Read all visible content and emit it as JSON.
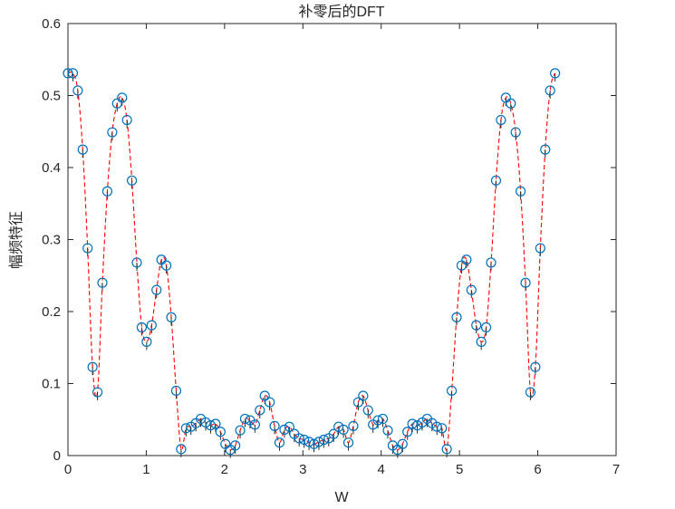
{
  "chart_data": {
    "type": "line",
    "title": "补零后的DFT",
    "xlabel": "W",
    "ylabel": "幅频特征",
    "xlim": [
      0,
      7
    ],
    "ylim": [
      0,
      0.6
    ],
    "xticks": [
      0,
      1,
      2,
      3,
      4,
      5,
      6,
      7
    ],
    "yticks": [
      0,
      0.1,
      0.2,
      0.3,
      0.4,
      0.5,
      0.6
    ],
    "xtick_labels": [
      "0",
      "1",
      "2",
      "3",
      "4",
      "5",
      "6",
      "7"
    ],
    "ytick_labels": [
      "0",
      "0.1",
      "0.2",
      "0.3",
      "0.4",
      "0.5",
      "0.6"
    ],
    "grid": false,
    "box": true,
    "series": [
      {
        "style": "red dashed interpolated line with blue circle markers and stems",
        "marker_color": "#0072BD",
        "line_color": "#FF0000",
        "x": [
          0,
          0.0628,
          0.1257,
          0.1885,
          0.2513,
          0.3142,
          0.377,
          0.4398,
          0.5027,
          0.5655,
          0.6283,
          0.6912,
          0.754,
          0.8168,
          0.8796,
          0.9425,
          1.0053,
          1.0681,
          1.131,
          1.1938,
          1.2566,
          1.3195,
          1.3823,
          1.4451,
          1.508,
          1.5708,
          1.6336,
          1.6965,
          1.7593,
          1.8221,
          1.885,
          1.9478,
          2.0106,
          2.0735,
          2.1363,
          2.1991,
          2.2619,
          2.3248,
          2.3876,
          2.4504,
          2.5133,
          2.5761,
          2.6389,
          2.7018,
          2.7646,
          2.8274,
          2.8903,
          2.9531,
          3.0159,
          3.0788,
          3.1416,
          3.2044,
          3.2673,
          3.3301,
          3.3929,
          3.4558,
          3.5186,
          3.5814,
          3.6442,
          3.7071,
          3.7699,
          3.8327,
          3.8956,
          3.9584,
          4.0212,
          4.0841,
          4.1469,
          4.2097,
          4.2726,
          4.3354,
          4.3982,
          4.4611,
          4.5239,
          4.5867,
          4.6496,
          4.7124,
          4.7752,
          4.8381,
          4.9009,
          4.9637,
          5.0265,
          5.0894,
          5.1522,
          5.215,
          5.2779,
          5.3407,
          5.4035,
          5.4664,
          5.5292,
          5.592,
          5.6549,
          5.7177,
          5.7805,
          5.8434,
          5.9062,
          5.969,
          6.0319,
          6.0947,
          6.1575,
          6.2204
        ],
        "y": [
          0.531,
          0.531,
          0.507,
          0.425,
          0.288,
          0.123,
          0.088,
          0.24,
          0.367,
          0.449,
          0.489,
          0.497,
          0.466,
          0.382,
          0.268,
          0.178,
          0.158,
          0.181,
          0.23,
          0.272,
          0.264,
          0.192,
          0.09,
          0.009,
          0.038,
          0.04,
          0.045,
          0.051,
          0.046,
          0.042,
          0.044,
          0.033,
          0.016,
          0.008,
          0.014,
          0.035,
          0.051,
          0.049,
          0.043,
          0.063,
          0.083,
          0.074,
          0.041,
          0.018,
          0.036,
          0.04,
          0.03,
          0.024,
          0.022,
          0.019,
          0.016,
          0.019,
          0.022,
          0.024,
          0.03,
          0.04,
          0.036,
          0.018,
          0.041,
          0.074,
          0.083,
          0.063,
          0.043,
          0.049,
          0.051,
          0.035,
          0.014,
          0.008,
          0.016,
          0.033,
          0.044,
          0.042,
          0.046,
          0.051,
          0.045,
          0.04,
          0.038,
          0.009,
          0.09,
          0.192,
          0.264,
          0.272,
          0.23,
          0.181,
          0.158,
          0.178,
          0.268,
          0.382,
          0.466,
          0.497,
          0.489,
          0.449,
          0.367,
          0.24,
          0.088,
          0.123,
          0.288,
          0.425,
          0.507,
          0.531
        ]
      }
    ]
  }
}
